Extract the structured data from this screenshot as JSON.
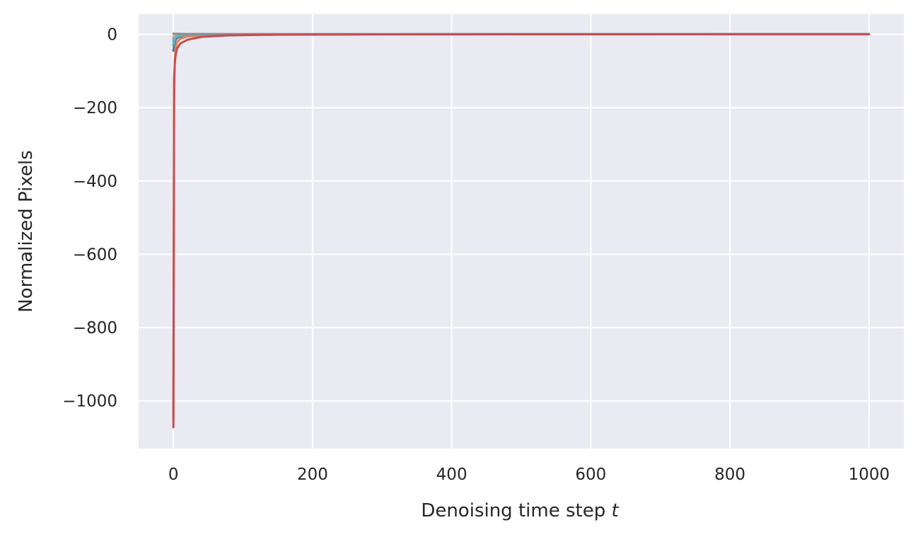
{
  "chart_data": {
    "type": "line",
    "title": "",
    "xlabel": "Denoising time step",
    "xlabel_var": "t",
    "ylabel": "Normalized Pixels",
    "xlim": [
      -50,
      1050
    ],
    "ylim": [
      -1130,
      55
    ],
    "xticks": [
      0,
      200,
      400,
      600,
      800,
      1000
    ],
    "xtick_labels": [
      "0",
      "200",
      "400",
      "600",
      "800",
      "1000"
    ],
    "yticks": [
      0,
      -200,
      -400,
      -600,
      -800,
      -1000
    ],
    "ytick_labels": [
      "0",
      "−200",
      "−400",
      "−600",
      "−800",
      "−1000"
    ],
    "grid": true,
    "background": "#eaeaf2",
    "series": [
      {
        "color": "#4c72b0",
        "x": [
          0,
          1,
          2,
          3,
          5,
          10,
          20,
          40,
          80,
          150,
          300,
          500,
          1000
        ],
        "values": [
          -45,
          -30,
          -22,
          -16,
          -10,
          -6,
          -3,
          -1.5,
          -0.6,
          -0.2,
          0,
          0.3,
          0.5
        ]
      },
      {
        "color": "#dd8452",
        "x": [
          0,
          1,
          2,
          3,
          5,
          10,
          20,
          40,
          80,
          150,
          300,
          500,
          1000
        ],
        "values": [
          -1055,
          -200,
          -70,
          -40,
          -22,
          -12,
          -6,
          -3,
          -1.2,
          -0.5,
          0,
          0.3,
          0.5
        ]
      },
      {
        "color": "#55a868",
        "x": [
          0,
          1,
          2,
          3,
          5,
          10,
          20,
          40,
          80,
          150,
          300,
          500,
          1000
        ],
        "values": [
          -30,
          -20,
          -14,
          -10,
          -7,
          -4,
          -2,
          -1,
          -0.4,
          -0.1,
          0,
          0.3,
          0.5
        ]
      },
      {
        "color": "#8172b3",
        "x": [
          0,
          1,
          2,
          3,
          5,
          10,
          20,
          40,
          80,
          150,
          300,
          500,
          1000
        ],
        "values": [
          -20,
          -14,
          -10,
          -7,
          -5,
          -3,
          -1.5,
          -0.7,
          -0.3,
          -0.1,
          0,
          0.3,
          0.5
        ]
      },
      {
        "color": "#937860",
        "x": [
          0,
          1,
          2,
          3,
          5,
          10,
          20,
          40,
          80,
          150,
          300,
          500,
          1000
        ],
        "values": [
          -10,
          -7,
          -5,
          -4,
          -3,
          -2,
          -1,
          -0.5,
          -0.2,
          0,
          0,
          0.3,
          0.5
        ]
      },
      {
        "color": "#da8bc3",
        "x": [
          0,
          1,
          2,
          3,
          5,
          10,
          20,
          40,
          80,
          150,
          300,
          500,
          1000
        ],
        "values": [
          -15,
          -10,
          -7,
          -5,
          -3.5,
          -2,
          -1,
          -0.5,
          -0.2,
          0,
          0,
          0.3,
          0.5
        ]
      },
      {
        "color": "#ccb974",
        "x": [
          0,
          1,
          2,
          3,
          5,
          10,
          20,
          40,
          80,
          150,
          300,
          500,
          1000
        ],
        "values": [
          -5,
          -4,
          -3,
          -2.5,
          -2,
          -1.2,
          -0.6,
          -0.3,
          -0.1,
          0,
          0,
          0.3,
          0.5
        ]
      },
      {
        "color": "#64b5cd",
        "x": [
          0,
          1,
          2,
          3,
          5,
          10,
          20,
          40,
          80,
          150,
          300,
          500,
          1000
        ],
        "values": [
          -25,
          -16,
          -11,
          -8,
          -5.5,
          -3,
          -1.5,
          -0.7,
          -0.3,
          -0.1,
          0,
          0.3,
          0.5
        ]
      },
      {
        "color": "#8c8c8c",
        "x": [
          0,
          1,
          2,
          3,
          5,
          10,
          20,
          40,
          80,
          150,
          300,
          500,
          1000
        ],
        "values": [
          2,
          1.8,
          1.6,
          1.5,
          1.4,
          1.2,
          1.0,
          0.9,
          0.8,
          0.7,
          0.6,
          0.6,
          0.6
        ]
      },
      {
        "color": "#c44e52",
        "x": [
          0,
          1,
          2,
          3,
          5,
          10,
          20,
          40,
          80,
          150,
          300,
          500,
          1000
        ],
        "values": [
          -1072,
          -120,
          -80,
          -60,
          -40,
          -25,
          -15,
          -7,
          -3,
          -1,
          -0.3,
          0,
          0.3
        ]
      }
    ]
  }
}
